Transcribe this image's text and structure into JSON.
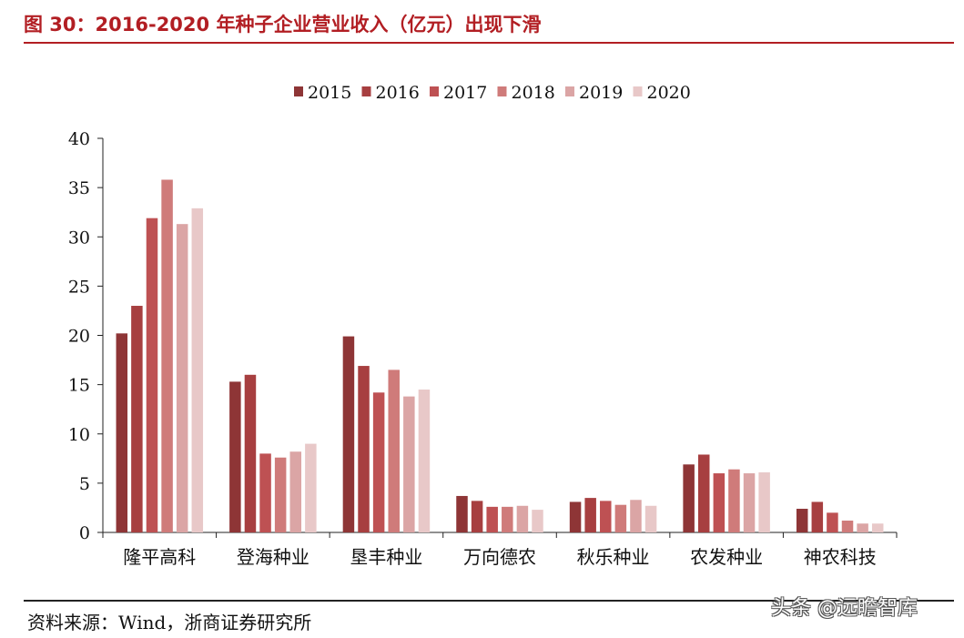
{
  "figure": {
    "title": "图 30：2016-2020 年种子企业营业收入（亿元）出现下滑",
    "source": "资料来源：Wind，浙商证券研究所",
    "watermark": "头条 @远瞻智库"
  },
  "colors": {
    "title": "#b21e23",
    "series": [
      "#8e3536",
      "#a73f40",
      "#be5153",
      "#cf7b7a",
      "#dba5a5",
      "#e8c8c8"
    ]
  },
  "chart_data": {
    "type": "bar",
    "categories": [
      "隆平高科",
      "登海种业",
      "垦丰种业",
      "万向德农",
      "秋乐种业",
      "农发种业",
      "神农科技"
    ],
    "series": [
      {
        "name": "2015",
        "values": [
          20.2,
          15.3,
          19.9,
          3.7,
          3.1,
          6.9,
          2.4
        ]
      },
      {
        "name": "2016",
        "values": [
          23.0,
          16.0,
          16.9,
          3.2,
          3.5,
          7.9,
          3.1
        ]
      },
      {
        "name": "2017",
        "values": [
          31.9,
          8.0,
          14.2,
          2.6,
          3.2,
          6.0,
          2.0
        ]
      },
      {
        "name": "2018",
        "values": [
          35.8,
          7.6,
          16.5,
          2.6,
          2.8,
          6.4,
          1.2
        ]
      },
      {
        "name": "2019",
        "values": [
          31.3,
          8.2,
          13.8,
          2.7,
          3.3,
          6.0,
          0.9
        ]
      },
      {
        "name": "2020",
        "values": [
          32.9,
          9.0,
          14.5,
          2.3,
          2.7,
          6.1,
          0.9
        ]
      }
    ],
    "yticks": [
      0,
      5,
      10,
      15,
      20,
      25,
      30,
      35,
      40
    ],
    "ylim": [
      0,
      40
    ],
    "legend": "top-center",
    "grid": false
  }
}
